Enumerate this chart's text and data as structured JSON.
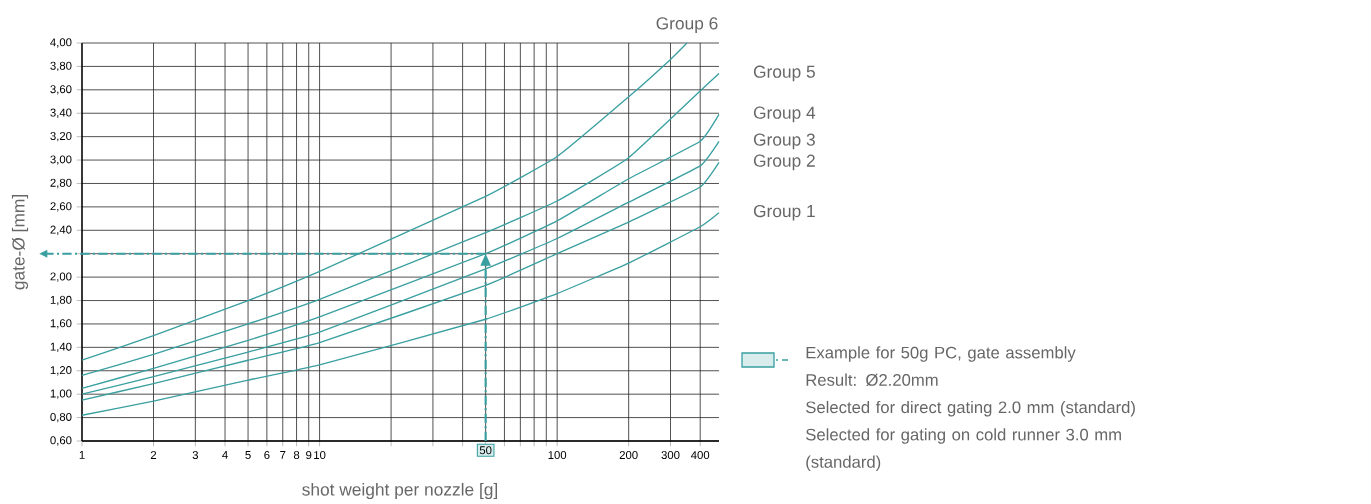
{
  "chart_data": {
    "type": "line",
    "xlabel": "shot weight per nozzle [g]",
    "ylabel": "gate-Ø [mm]",
    "log": "x",
    "grid": true,
    "x": [
      1,
      2,
      5,
      10,
      50,
      100,
      200,
      400,
      480
    ],
    "xlim": [
      1,
      480
    ],
    "ylim": [
      0.6,
      4.0
    ],
    "xticks": [
      1,
      2,
      3,
      4,
      5,
      6,
      7,
      8,
      9,
      10,
      {
        "value": 20,
        "label": null
      },
      {
        "value": 30,
        "label": null
      },
      {
        "value": 40,
        "label": null
      },
      {
        "value": 50,
        "label": null
      },
      {
        "value": 60,
        "label": null
      },
      {
        "value": 70,
        "label": null
      },
      {
        "value": 80,
        "label": null
      },
      {
        "value": 90,
        "label": null
      },
      100,
      200,
      300,
      400
    ],
    "yticks": [
      {
        "value": 0.6,
        "label": "0,60"
      },
      {
        "value": 0.8,
        "label": "0,80"
      },
      {
        "value": 1.0,
        "label": "1,00"
      },
      {
        "value": 1.2,
        "label": "1,20"
      },
      {
        "value": 1.4,
        "label": "1,40"
      },
      {
        "value": 1.6,
        "label": "1,60"
      },
      {
        "value": 1.8,
        "label": "1,80"
      },
      {
        "value": 2.0,
        "label": "2,00"
      },
      {
        "value": 2.2,
        "label": null
      },
      {
        "value": 2.4,
        "label": "2,40"
      },
      {
        "value": 2.6,
        "label": "2,60"
      },
      {
        "value": 2.8,
        "label": "2,80"
      },
      {
        "value": 3.0,
        "label": "3,00"
      },
      {
        "value": 3.2,
        "label": "3,20"
      },
      {
        "value": 3.4,
        "label": "3,40"
      },
      {
        "value": 3.6,
        "label": "3,60"
      },
      {
        "value": 3.8,
        "label": "3,80"
      },
      {
        "value": 4.0,
        "label": "4,00"
      }
    ],
    "series": [
      {
        "name": "Group 1",
        "color": "#3a9fa0",
        "values": [
          0.82,
          0.94,
          1.12,
          1.25,
          1.64,
          1.86,
          2.12,
          2.43,
          2.55
        ]
      },
      {
        "name": "Group 2",
        "color": "#3a9fa0",
        "values": [
          0.95,
          1.09,
          1.29,
          1.44,
          1.93,
          2.2,
          2.47,
          2.77,
          2.98
        ]
      },
      {
        "name": "Group 3",
        "color": "#3a9fa0",
        "values": [
          1.0,
          1.15,
          1.36,
          1.53,
          2.07,
          2.33,
          2.64,
          2.95,
          3.16
        ]
      },
      {
        "name": "Group 4",
        "color": "#3a9fa0",
        "values": [
          1.05,
          1.22,
          1.46,
          1.66,
          2.2,
          2.48,
          2.84,
          3.16,
          3.39
        ]
      },
      {
        "name": "Group 5",
        "color": "#3a9fa0",
        "values": [
          1.16,
          1.34,
          1.6,
          1.81,
          2.38,
          2.65,
          3.02,
          3.59,
          3.74
        ]
      },
      {
        "name": "Group 6",
        "color": "#3a9fa0",
        "x": [
          1,
          2,
          5,
          10,
          50,
          100,
          200,
          300,
          352
        ],
        "values": [
          1.29,
          1.5,
          1.8,
          2.05,
          2.69,
          3.03,
          3.54,
          3.86,
          4.0
        ]
      }
    ],
    "ref_lines": [
      {
        "axis": "y",
        "value": 2.2,
        "color": "#3a9fa0",
        "line_style": "dashed"
      },
      {
        "axis": "x",
        "value": 50,
        "label": "50",
        "color": "#3a9fa0",
        "line_style": "dashed"
      }
    ],
    "annotations": [
      "Example for 50g PC, gate assembly",
      "Result: Ø2.20mm",
      "Selected for direct gating 2.0 mm (standard)",
      "Selected for gating on cold runner 3.0 mm (standard)"
    ]
  }
}
